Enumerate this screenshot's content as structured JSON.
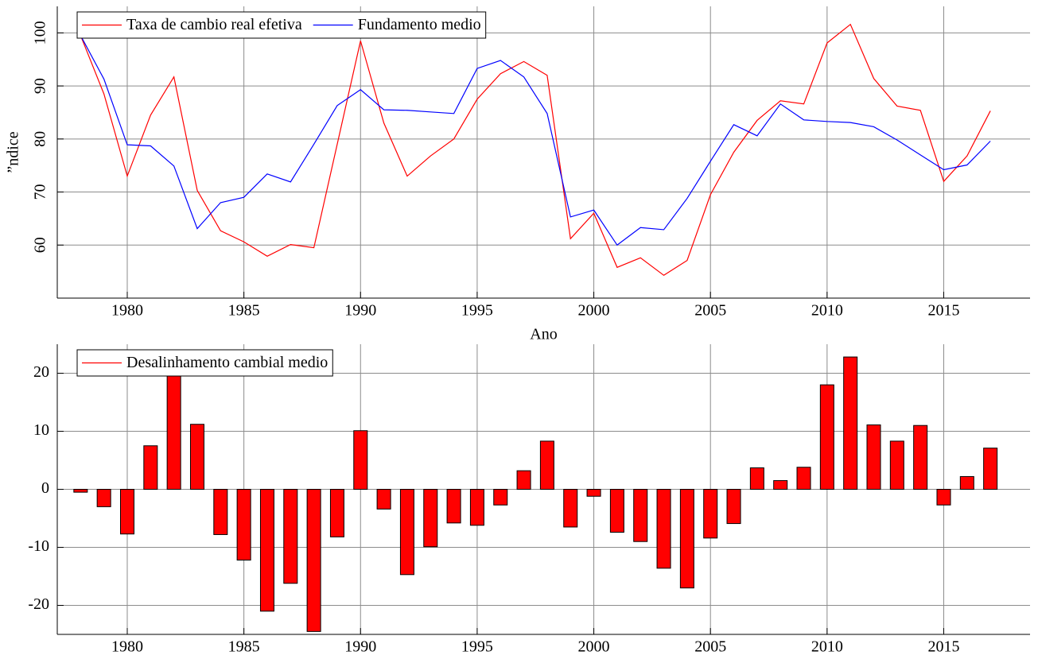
{
  "chart_data": [
    {
      "type": "line",
      "xlabel": "Ano",
      "ylabel": "”ndice",
      "x": [
        1978,
        1979,
        1980,
        1981,
        1982,
        1983,
        1984,
        1985,
        1986,
        1987,
        1988,
        1989,
        1990,
        1991,
        1992,
        1993,
        1994,
        1995,
        1996,
        1997,
        1998,
        1999,
        2000,
        2001,
        2002,
        2003,
        2004,
        2005,
        2006,
        2007,
        2008,
        2009,
        2010,
        2011,
        2012,
        2013,
        2014,
        2015,
        2016,
        2017
      ],
      "series": [
        {
          "name": "Taxa de cambio real efetiva",
          "color": "#ff0000",
          "values": [
            99.5,
            88.5,
            73,
            84.5,
            91.7,
            70.3,
            62.7,
            60.6,
            57.9,
            60.1,
            59.5,
            79,
            98.5,
            83,
            73,
            76.8,
            80,
            87.5,
            92.3,
            94.6,
            92,
            61.2,
            66,
            55.8,
            57.6,
            54.3,
            57.1,
            69.5,
            77.5,
            83.5,
            87.2,
            86.6,
            98.1,
            101.6,
            91.4,
            86.2,
            85.4,
            72,
            76.8,
            85.3
          ]
        },
        {
          "name": "Fundamento medio",
          "color": "#0000ff",
          "values": [
            99.5,
            91.3,
            78.9,
            78.7,
            74.9,
            63.1,
            68,
            69,
            73.4,
            71.9,
            79,
            86.3,
            89.3,
            85.5,
            85.4,
            85.1,
            84.8,
            93.3,
            94.8,
            91.7,
            84.8,
            65.3,
            66.6,
            60,
            63.3,
            62.9,
            68.8,
            75.8,
            82.7,
            80.6,
            86.6,
            83.6,
            83.3,
            83.1,
            82.3,
            79.8,
            77,
            74.2,
            75.1,
            79.6
          ]
        }
      ],
      "xlim": [
        1977,
        2018.7
      ],
      "xticks": [
        1980,
        1985,
        1990,
        1995,
        2000,
        2005,
        2010,
        2015
      ],
      "ylim": [
        50,
        105
      ],
      "yticks": [
        60,
        70,
        80,
        90,
        100
      ],
      "grid": true,
      "legend": "upper left"
    },
    {
      "type": "bar",
      "x": [
        1978,
        1979,
        1980,
        1981,
        1982,
        1983,
        1984,
        1985,
        1986,
        1987,
        1988,
        1989,
        1990,
        1991,
        1992,
        1993,
        1994,
        1995,
        1996,
        1997,
        1998,
        1999,
        2000,
        2001,
        2002,
        2003,
        2004,
        2005,
        2006,
        2007,
        2008,
        2009,
        2010,
        2011,
        2012,
        2013,
        2014,
        2015,
        2016,
        2017
      ],
      "series": [
        {
          "name": "Desalinhamento cambial medio",
          "color": "#ff0000",
          "values": [
            -0.5,
            -3,
            -7.7,
            7.5,
            22.6,
            11.2,
            -7.8,
            -12.2,
            -21,
            -16.2,
            -24.5,
            -8.2,
            10.1,
            -3.4,
            -14.7,
            -9.9,
            -5.8,
            -6.2,
            -2.7,
            3.2,
            8.3,
            -6.5,
            -1.2,
            -7.4,
            -9,
            -13.6,
            -17,
            -8.4,
            -5.9,
            3.7,
            1.5,
            3.8,
            18,
            22.8,
            11.1,
            8.3,
            11,
            -2.7,
            2.2,
            7.1
          ]
        }
      ],
      "xlim": [
        1977,
        2018.7
      ],
      "xticks": [
        1980,
        1985,
        1990,
        1995,
        2000,
        2005,
        2010,
        2015
      ],
      "ylim": [
        -25,
        25
      ],
      "yticks": [
        -20,
        -10,
        0,
        10,
        20
      ],
      "grid": true,
      "legend": "upper left"
    }
  ]
}
